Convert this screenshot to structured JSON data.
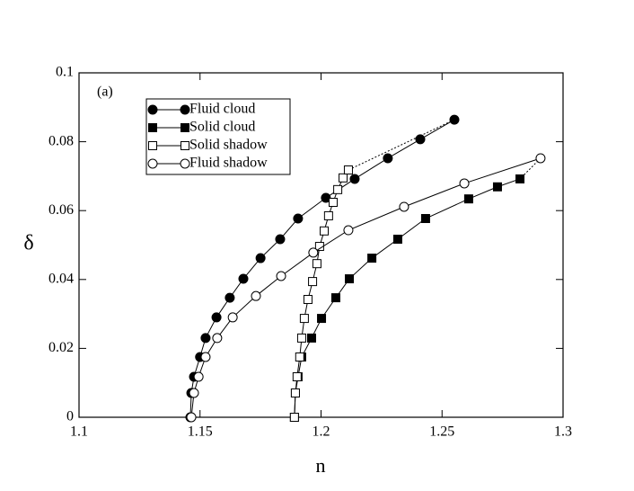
{
  "chart_data": {
    "type": "line",
    "annotation": "(a)",
    "x_label": "n",
    "y_label": "δ",
    "xlim": [
      1.1,
      1.3
    ],
    "xticks": [
      1.1,
      1.15,
      1.2,
      1.25,
      1.3
    ],
    "ylim": [
      0,
      0.1
    ],
    "yticks": [
      0,
      0.02,
      0.04,
      0.06,
      0.08,
      0.1
    ],
    "legend": "upper left",
    "series": [
      {
        "name": "Fluid cloud",
        "color": "#000000",
        "marker": "circle",
        "filled": true,
        "x": [
          1.146,
          1.1464,
          1.1475,
          1.15,
          1.1523,
          1.1568,
          1.1623,
          1.1679,
          1.175,
          1.1831,
          1.1905,
          1.202,
          1.2139,
          1.2276,
          1.241,
          1.2551
        ],
        "values": [
          0,
          0.00705,
          0.01175,
          0.0175,
          0.023,
          0.029,
          0.0347,
          0.0402,
          0.0462,
          0.0517,
          0.0577,
          0.0637,
          0.0692,
          0.0752,
          0.0807,
          0.0864
        ]
      },
      {
        "name": "Solid cloud",
        "color": "#000000",
        "marker": "square",
        "filled": true,
        "x": [
          1.189,
          1.1894,
          1.1905,
          1.192,
          1.1961,
          1.2002,
          1.2061,
          1.2117,
          1.221,
          1.2317,
          1.2432,
          1.261,
          1.2729,
          1.2822
        ],
        "values": [
          0,
          0.00705,
          0.01175,
          0.0175,
          0.023,
          0.0287,
          0.0347,
          0.0402,
          0.0462,
          0.0517,
          0.0577,
          0.0634,
          0.0669,
          0.0692
        ]
      },
      {
        "name": "Solid shadow",
        "color": "#000000",
        "marker": "square",
        "filled": false,
        "x": [
          1.189,
          1.1894,
          1.1901,
          1.1912,
          1.192,
          1.1931,
          1.1946,
          1.1965,
          1.1983,
          1.1994,
          1.2013,
          1.2031,
          1.205,
          1.2069,
          1.2091,
          1.2113
        ],
        "values": [
          0,
          0.00705,
          0.01175,
          0.0175,
          0.023,
          0.0287,
          0.0342,
          0.0394,
          0.0446,
          0.0496,
          0.0541,
          0.0585,
          0.0624,
          0.0661,
          0.0695,
          0.0718
        ]
      },
      {
        "name": "Fluid shadow",
        "color": "#000000",
        "marker": "circle",
        "filled": false,
        "x": [
          1.1464,
          1.1475,
          1.1494,
          1.1523,
          1.1571,
          1.1635,
          1.1731,
          1.1835,
          1.1968,
          1.2113,
          1.2343,
          1.2592,
          1.2907
        ],
        "values": [
          0,
          0.00705,
          0.01175,
          0.0175,
          0.023,
          0.029,
          0.0352,
          0.041,
          0.0478,
          0.0543,
          0.0611,
          0.0679,
          0.0752
        ]
      }
    ]
  }
}
